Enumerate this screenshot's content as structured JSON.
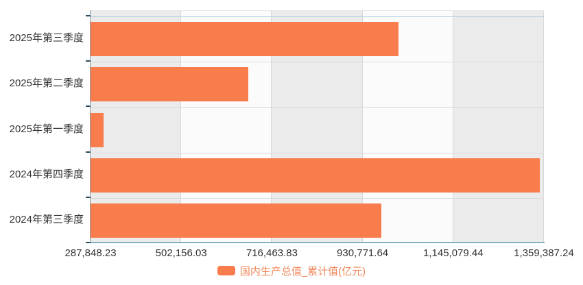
{
  "chart_data": {
    "type": "bar",
    "orientation": "horizontal",
    "title": "",
    "categories": [
      "2025年第三季度",
      "2025年第二季度",
      "2025年第一季度",
      "2024年第四季度",
      "2024年第三季度"
    ],
    "series": [
      {
        "name": "国内生产总值_累计值(亿元)",
        "values": [
          1015000,
          660600,
          318800,
          1349100,
          974600
        ]
      }
    ],
    "x_axis": {
      "min": 287848.23,
      "max": 1359387.24,
      "tick_labels": [
        "287,848.23",
        "502,156.03",
        "716,463.83",
        "930,771.64",
        "1,145,079.44",
        "1,359,387.24"
      ],
      "tick_values": [
        287848.23,
        502156.03,
        716463.83,
        930771.64,
        1145079.44,
        1359387.24
      ]
    },
    "legend": {
      "label": "国内生产总值_累计值(亿元)",
      "position": "bottom"
    },
    "grid": "vertical-lines-with-alternating-bands",
    "colors": {
      "bar": "#f97d4c",
      "legend_text": "#ef8657",
      "band_gray": "#ebebeb",
      "band_white": "#fbfbfb",
      "axis_left": "#8b9aa3",
      "axis_tick": "#2b4a5e",
      "axis_bottom": "#7fb2c9",
      "label_text": "#333333"
    }
  }
}
